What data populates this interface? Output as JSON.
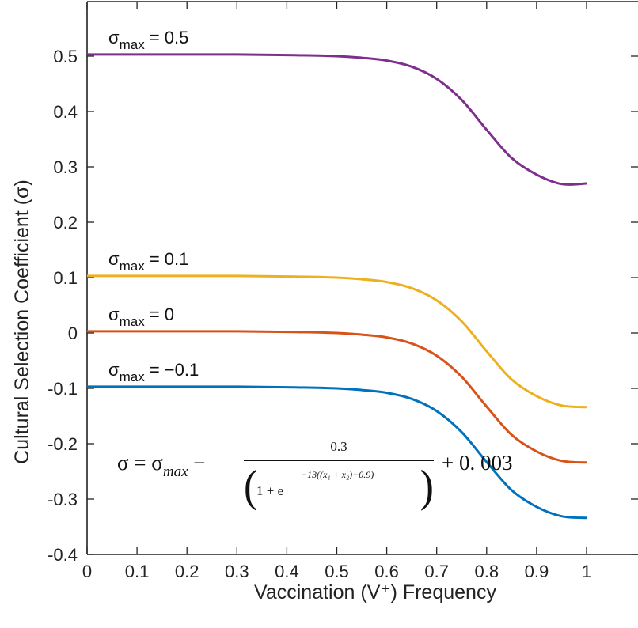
{
  "chart_data": {
    "type": "line",
    "xlabel": "Vaccination (V⁺) Frequency",
    "ylabel": "Cultural Selection Coefficient (σ)",
    "xlim": [
      0,
      1
    ],
    "ylim": [
      -0.4,
      0.6
    ],
    "xticks": [
      0,
      0.1,
      0.2,
      0.3,
      0.4,
      0.5,
      0.6,
      0.7,
      0.8,
      0.9,
      1
    ],
    "xtick_labels": [
      "0",
      "0.1",
      "0.2",
      "0.3",
      "0.4",
      "0.5",
      "0.6",
      "0.7",
      "0.8",
      "0.9",
      "1"
    ],
    "yticks": [
      -0.4,
      -0.3,
      -0.2,
      -0.1,
      0,
      0.1,
      0.2,
      0.3,
      0.4,
      0.5
    ],
    "ytick_labels": [
      "-0.4",
      "-0.3",
      "-0.2",
      "-0.1",
      "0",
      "0.1",
      "0.2",
      "0.3",
      "0.4",
      "0.5"
    ],
    "grid": false,
    "x": [
      0,
      0.1,
      0.2,
      0.3,
      0.4,
      0.5,
      0.55,
      0.6,
      0.65,
      0.7,
      0.75,
      0.8,
      0.85,
      0.9,
      0.95,
      1.0
    ],
    "series": [
      {
        "name": "σmax = 0.5",
        "label_main": "σ",
        "label_sub": "max",
        "label_rest": " = 0.5",
        "color": "#7E2F8E",
        "values": [
          0.503,
          0.503,
          0.503,
          0.503,
          0.502,
          0.5,
          0.497,
          0.492,
          0.481,
          0.459,
          0.421,
          0.367,
          0.316,
          0.286,
          0.269,
          0.27
        ]
      },
      {
        "name": "σmax = 0.1",
        "label_main": "σ",
        "label_sub": "max",
        "label_rest": " = 0.1",
        "color": "#EDB120",
        "values": [
          0.103,
          0.103,
          0.103,
          0.103,
          0.102,
          0.1,
          0.097,
          0.092,
          0.081,
          0.059,
          0.021,
          -0.033,
          -0.084,
          -0.114,
          -0.131,
          -0.134
        ]
      },
      {
        "name": "σmax = 0",
        "label_main": "σ",
        "label_sub": "max",
        "label_rest": " = 0",
        "color": "#D95319",
        "values": [
          0.003,
          0.003,
          0.003,
          0.003,
          0.002,
          0.0,
          -0.003,
          -0.008,
          -0.019,
          -0.041,
          -0.079,
          -0.133,
          -0.184,
          -0.214,
          -0.231,
          -0.234
        ]
      },
      {
        "name": "σmax = −0.1",
        "label_main": "σ",
        "label_sub": "max",
        "label_rest": " = −0.1",
        "color": "#0072BD",
        "values": [
          -0.097,
          -0.097,
          -0.097,
          -0.097,
          -0.098,
          -0.1,
          -0.103,
          -0.108,
          -0.119,
          -0.141,
          -0.179,
          -0.233,
          -0.284,
          -0.314,
          -0.331,
          -0.334
        ]
      }
    ],
    "annotation": {
      "lhs": "σ = σ",
      "lhs_sub": "max",
      "minus": " −",
      "numerator": "0.3",
      "den_base": "1 + e",
      "den_exp": "−13((x₁ + x₂)−0.9)",
      "tail": "+ 0. 003"
    }
  }
}
